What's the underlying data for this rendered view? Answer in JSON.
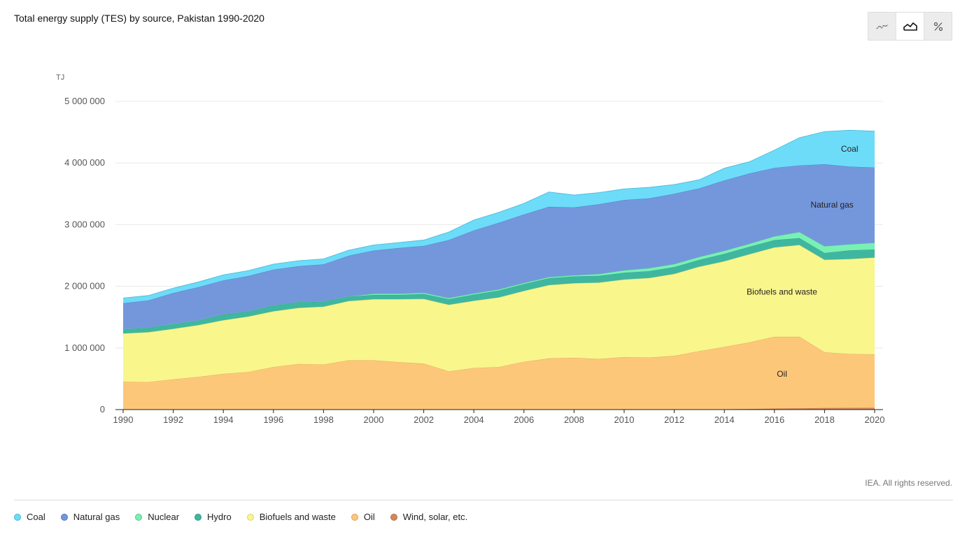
{
  "header": {
    "title": "Total energy supply (TES) by source, Pakistan 1990-2020"
  },
  "toolbar": {
    "buttons": [
      {
        "name": "line-chart-button",
        "icon": "line-chart-icon",
        "active": false
      },
      {
        "name": "area-chart-button",
        "icon": "area-chart-icon",
        "active": true
      },
      {
        "name": "percent-button",
        "icon": "percent-icon",
        "active": false
      }
    ]
  },
  "footer": {
    "credit": "IEA. All rights reserved."
  },
  "chart_data": {
    "type": "area",
    "stacked": true,
    "title": "Total energy supply (TES) by source, Pakistan 1990-2020",
    "unit_label": "TJ",
    "ylim": [
      0,
      5000000
    ],
    "y_ticks": [
      0,
      1000000,
      2000000,
      3000000,
      4000000,
      5000000
    ],
    "y_tick_labels": [
      "0",
      "1 000 000",
      "2 000 000",
      "3 000 000",
      "4 000 000",
      "5 000 000"
    ],
    "x_ticks": [
      1990,
      1992,
      1994,
      1996,
      1998,
      2000,
      2002,
      2004,
      2006,
      2008,
      2010,
      2012,
      2014,
      2016,
      2018,
      2020
    ],
    "grid": true,
    "x": [
      1990,
      1991,
      1992,
      1993,
      1994,
      1995,
      1996,
      1997,
      1998,
      1999,
      2000,
      2001,
      2002,
      2003,
      2004,
      2005,
      2006,
      2007,
      2008,
      2009,
      2010,
      2011,
      2012,
      2013,
      2014,
      2015,
      2016,
      2017,
      2018,
      2019,
      2020
    ],
    "series": [
      {
        "name": "Wind, solar, etc.",
        "color": "#d4875a",
        "stroke": "#b86f45",
        "label": "",
        "values": [
          0,
          0,
          0,
          0,
          0,
          0,
          0,
          0,
          0,
          0,
          0,
          0,
          0,
          0,
          0,
          0,
          0,
          0,
          0,
          0,
          0,
          0,
          1000,
          3000,
          6000,
          10000,
          15000,
          20000,
          25000,
          27000,
          28000
        ]
      },
      {
        "name": "Oil",
        "color": "#fdc77a",
        "stroke": "#d9a35a",
        "label": "Oil",
        "label_x": 2016.3,
        "label_y": 580000,
        "values": [
          450000,
          445000,
          490000,
          530000,
          580000,
          610000,
          690000,
          740000,
          730000,
          800000,
          800000,
          770000,
          745000,
          620000,
          675000,
          690000,
          775000,
          830000,
          840000,
          820000,
          850000,
          845000,
          870000,
          945000,
          1010000,
          1080000,
          1165000,
          1160000,
          905000,
          875000,
          868000
        ]
      },
      {
        "name": "Biofuels and waste",
        "color": "#f9f68c",
        "stroke": "#d8d46a",
        "label": "Biofuels and waste",
        "label_x": 2016.3,
        "label_y": 1910000,
        "values": [
          785000,
          810000,
          820000,
          840000,
          870000,
          900000,
          905000,
          910000,
          940000,
          960000,
          990000,
          1020000,
          1050000,
          1080000,
          1090000,
          1130000,
          1150000,
          1190000,
          1210000,
          1240000,
          1260000,
          1290000,
          1330000,
          1370000,
          1390000,
          1430000,
          1450000,
          1490000,
          1500000,
          1540000,
          1570000
        ]
      },
      {
        "name": "Hydro",
        "color": "#3fb7a0",
        "stroke": "#2e9985",
        "label": "",
        "values": [
          65000,
          70000,
          75000,
          70000,
          90000,
          80000,
          90000,
          90000,
          80000,
          70000,
          70000,
          70000,
          80000,
          90000,
          100000,
          110000,
          110000,
          110000,
          110000,
          110000,
          110000,
          110000,
          110000,
          110000,
          120000,
          120000,
          120000,
          110000,
          110000,
          140000,
          130000
        ]
      },
      {
        "name": "Nuclear",
        "color": "#79f0b4",
        "stroke": "#50c98e",
        "label": "",
        "values": [
          5000,
          5000,
          5000,
          5000,
          5000,
          5000,
          5000,
          5000,
          5000,
          5000,
          20000,
          20000,
          20000,
          20000,
          20000,
          20000,
          20000,
          20000,
          20000,
          30000,
          40000,
          50000,
          50000,
          50000,
          50000,
          50000,
          60000,
          100000,
          110000,
          100000,
          110000
        ]
      },
      {
        "name": "Natural gas",
        "color": "#7497dc",
        "stroke": "#4f75c2",
        "label": "Natural gas",
        "label_x": 2018.3,
        "label_y": 3320000,
        "values": [
          420000,
          440000,
          500000,
          540000,
          550000,
          570000,
          580000,
          580000,
          600000,
          660000,
          700000,
          740000,
          760000,
          940000,
          1020000,
          1080000,
          1110000,
          1140000,
          1100000,
          1130000,
          1140000,
          1130000,
          1140000,
          1110000,
          1140000,
          1140000,
          1110000,
          1080000,
          1330000,
          1260000,
          1220000
        ]
      },
      {
        "name": "Coal",
        "color": "#6ddcf8",
        "stroke": "#44b7d8",
        "label": "Coal",
        "label_x": 2019.0,
        "label_y": 4230000,
        "values": [
          85000,
          80000,
          80000,
          85000,
          90000,
          90000,
          90000,
          90000,
          90000,
          90000,
          90000,
          90000,
          95000,
          130000,
          170000,
          170000,
          180000,
          240000,
          200000,
          190000,
          180000,
          180000,
          150000,
          140000,
          200000,
          190000,
          290000,
          450000,
          530000,
          590000,
          590000
        ]
      }
    ],
    "legend_order": [
      "Coal",
      "Natural gas",
      "Nuclear",
      "Hydro",
      "Biofuels and waste",
      "Oil",
      "Wind, solar, etc."
    ]
  }
}
